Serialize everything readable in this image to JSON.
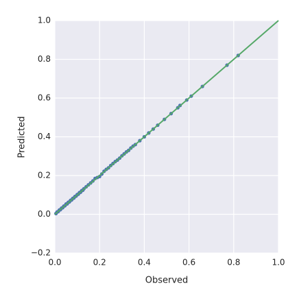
{
  "chart_data": {
    "type": "scatter",
    "xlabel": "Observed",
    "ylabel": "Predicted",
    "x": [
      0.005,
      0.01,
      0.015,
      0.02,
      0.025,
      0.03,
      0.035,
      0.04,
      0.045,
      0.05,
      0.055,
      0.06,
      0.065,
      0.07,
      0.075,
      0.08,
      0.085,
      0.09,
      0.095,
      0.1,
      0.105,
      0.11,
      0.115,
      0.12,
      0.125,
      0.13,
      0.14,
      0.15,
      0.16,
      0.17,
      0.18,
      0.19,
      0.2,
      0.21,
      0.22,
      0.23,
      0.24,
      0.25,
      0.26,
      0.27,
      0.28,
      0.29,
      0.3,
      0.31,
      0.32,
      0.33,
      0.34,
      0.35,
      0.36,
      0.38,
      0.4,
      0.42,
      0.44,
      0.46,
      0.49,
      0.52,
      0.55,
      0.56,
      0.59,
      0.61,
      0.66,
      0.77,
      0.82
    ],
    "y": [
      0.004,
      0.012,
      0.014,
      0.022,
      0.024,
      0.032,
      0.034,
      0.042,
      0.044,
      0.053,
      0.054,
      0.062,
      0.064,
      0.072,
      0.074,
      0.082,
      0.084,
      0.092,
      0.094,
      0.102,
      0.104,
      0.112,
      0.114,
      0.122,
      0.124,
      0.132,
      0.142,
      0.152,
      0.162,
      0.172,
      0.185,
      0.19,
      0.195,
      0.208,
      0.222,
      0.232,
      0.24,
      0.252,
      0.262,
      0.272,
      0.28,
      0.29,
      0.302,
      0.312,
      0.322,
      0.33,
      0.342,
      0.352,
      0.36,
      0.38,
      0.4,
      0.42,
      0.44,
      0.46,
      0.49,
      0.52,
      0.55,
      0.562,
      0.59,
      0.61,
      0.66,
      0.77,
      0.82
    ],
    "color": "#4c72b0",
    "fit_line": {
      "x": [
        0,
        1
      ],
      "y": [
        0.0,
        1.0
      ],
      "color": "#55a868"
    },
    "xlim": [
      0,
      1
    ],
    "ylim": [
      -0.2,
      1
    ],
    "xticks": [
      {
        "value": 0,
        "label": "0.0"
      },
      0.2,
      0.4,
      0.6,
      0.8,
      {
        "value": 1,
        "label": "1.0"
      }
    ],
    "yticks": [
      {
        "value": -0.2,
        "label": "−0.2"
      },
      {
        "value": 0,
        "label": "0.0"
      },
      0.2,
      0.4,
      0.6,
      0.8,
      {
        "value": 1,
        "label": "1.0"
      }
    ],
    "grid": true
  }
}
